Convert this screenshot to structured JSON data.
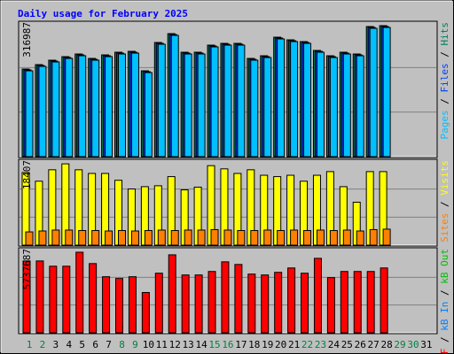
{
  "chart_data": [
    {
      "type": "bar",
      "title": "Daily usage for February 2025",
      "ylim": [
        0,
        316987
      ],
      "legend_separator": " / ",
      "series": [
        {
          "name": "Pages",
          "color": "#00c0ff",
          "values": [
            203600,
            214100,
            224600,
            233000,
            239300,
            228800,
            237200,
            243500,
            245600,
            199400,
            266600,
            287600,
            243500,
            243500,
            260300,
            264500,
            264500,
            228800,
            235100,
            279200,
            272900,
            268700,
            247700,
            235100,
            243500,
            239300,
            304400,
            306500,
            null,
            null,
            null
          ]
        },
        {
          "name": "Files",
          "color": "#0040ff",
          "values": [
            205700,
            216200,
            226700,
            235100,
            241400,
            230900,
            239300,
            245600,
            247700,
            201500,
            268700,
            289700,
            245600,
            245600,
            262400,
            266600,
            266600,
            230900,
            237200,
            281300,
            275000,
            270800,
            249800,
            237200,
            245600,
            241400,
            306500,
            308600,
            null,
            null,
            null
          ]
        },
        {
          "name": "Hits",
          "color": "#00805c",
          "values": [
            207800,
            218300,
            228800,
            237200,
            243500,
            233000,
            241400,
            247700,
            249800,
            203600,
            270800,
            291800,
            247700,
            247700,
            264500,
            268700,
            268700,
            233000,
            239300,
            283400,
            277100,
            272900,
            251900,
            239300,
            247700,
            243500,
            308600,
            310700,
            null,
            null,
            null
          ]
        }
      ]
    },
    {
      "type": "bar",
      "ylim": [
        0,
        18407
      ],
      "legend_separator": " / ",
      "series": [
        {
          "name": "Sites",
          "color": "#ff8000",
          "values": [
            2900,
            3100,
            3300,
            3300,
            3200,
            3200,
            3100,
            3200,
            3100,
            3200,
            3300,
            3200,
            3300,
            3300,
            3400,
            3300,
            3200,
            3200,
            3300,
            3200,
            3300,
            3200,
            3300,
            3200,
            3300,
            3100,
            3400,
            3500,
            null,
            null,
            null
          ]
        },
        {
          "name": "Visits",
          "color": "#ffff00",
          "values": [
            15900,
            14000,
            16500,
            17800,
            16500,
            15700,
            15700,
            14200,
            12300,
            12800,
            13000,
            15000,
            12100,
            12700,
            17400,
            16700,
            15700,
            16500,
            15300,
            15000,
            15300,
            14000,
            15300,
            16100,
            12800,
            9400,
            16100,
            16100,
            null,
            null,
            null
          ]
        }
      ]
    },
    {
      "type": "bar",
      "ylim": [
        0,
        5737687
      ],
      "legend_separator": " / ",
      "categories": [
        "1",
        "2",
        "3",
        "4",
        "5",
        "6",
        "7",
        "8",
        "9",
        "10",
        "11",
        "12",
        "13",
        "14",
        "15",
        "16",
        "17",
        "18",
        "19",
        "20",
        "21",
        "22",
        "23",
        "24",
        "25",
        "26",
        "27",
        "28",
        "29",
        "30",
        "31"
      ],
      "category_colors": [
        "#008040",
        "#008040",
        "#000000",
        "#000000",
        "#000000",
        "#000000",
        "#000000",
        "#008040",
        "#008040",
        "#000000",
        "#000000",
        "#000000",
        "#000000",
        "#000000",
        "#008040",
        "#008040",
        "#000000",
        "#000000",
        "#000000",
        "#000000",
        "#000000",
        "#008040",
        "#008040",
        "#000000",
        "#000000",
        "#000000",
        "#000000",
        "#000000",
        "#008040",
        "#008040",
        "#000000"
      ],
      "series": [
        {
          "name": "kB F",
          "color": "#ff0000",
          "values": [
            4952600,
            4952600,
            4590200,
            4590200,
            5556500,
            4771400,
            3865400,
            3744600,
            3865400,
            2778300,
            4107000,
            5375300,
            3986200,
            3986200,
            4227800,
            4892200,
            4711000,
            4046600,
            3986200,
            4167400,
            4469400,
            4107000,
            5133700,
            3805000,
            4227800,
            4227800,
            4227800,
            4469400,
            null,
            null,
            null
          ]
        },
        {
          "name": "kB In",
          "color": "#0080ff",
          "values": [
            null,
            null,
            null,
            null,
            null,
            null,
            null,
            null,
            null,
            null,
            null,
            null,
            null,
            null,
            null,
            null,
            null,
            null,
            null,
            null,
            null,
            null,
            null,
            null,
            null,
            null,
            null,
            null,
            null,
            null,
            null
          ]
        },
        {
          "name": "kB Out",
          "color": "#00c000",
          "values": [
            null,
            null,
            null,
            null,
            null,
            null,
            null,
            null,
            null,
            null,
            null,
            null,
            null,
            null,
            null,
            null,
            null,
            null,
            null,
            null,
            null,
            null,
            null,
            null,
            null,
            null,
            null,
            null,
            null,
            null,
            null
          ]
        }
      ]
    }
  ]
}
